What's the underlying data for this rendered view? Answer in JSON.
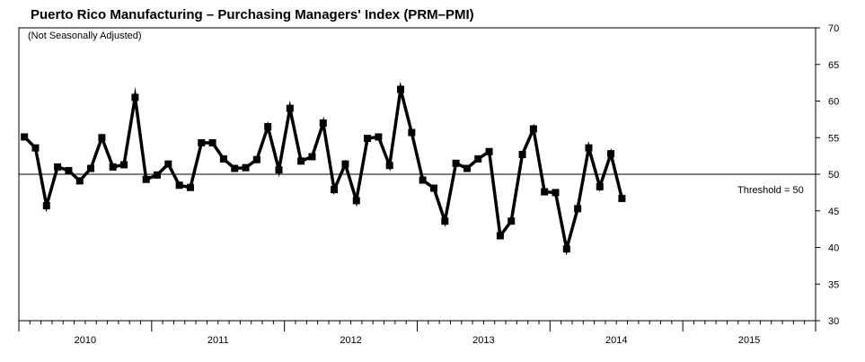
{
  "chart_data": {
    "type": "line",
    "title": "Puerto Rico Manufacturing – Purchasing Managers' Index (PRM–PMI)",
    "subtitle": "(Not Seasonally Adjusted)",
    "xlabel": "",
    "ylabel": "",
    "ylim": [
      30,
      70
    ],
    "yticks": [
      30,
      35,
      40,
      45,
      50,
      55,
      60,
      65,
      70
    ],
    "y_axis_side": "right",
    "x_period_labels": [
      "2010",
      "2011",
      "2012",
      "2013",
      "2014",
      "2015"
    ],
    "x_start": "2010-01",
    "threshold": {
      "value": 50,
      "label": "Threshold = 50"
    },
    "grid": false,
    "series": [
      {
        "values": [
          55.1,
          53.6,
          45.7,
          51.0,
          50.5,
          49.1,
          50.8,
          55.0,
          51.0,
          51.3,
          60.5,
          49.3,
          49.9,
          51.4,
          48.5,
          48.2,
          54.3,
          54.3,
          52.1,
          50.8,
          50.9,
          52.0,
          56.5,
          50.6,
          59.0,
          51.8,
          52.4,
          57.0,
          47.9,
          51.4,
          46.4,
          54.9,
          55.1,
          51.2,
          61.6,
          55.7,
          49.2,
          48.1,
          43.6,
          51.5,
          50.8,
          52.1,
          53.1,
          41.6,
          43.6,
          52.7,
          56.2,
          47.6,
          47.5,
          39.8,
          45.3,
          53.6,
          48.3,
          52.8,
          46.7
        ]
      }
    ]
  },
  "colors": {
    "line": "#000000",
    "axis": "#000000",
    "background": "#ffffff"
  }
}
